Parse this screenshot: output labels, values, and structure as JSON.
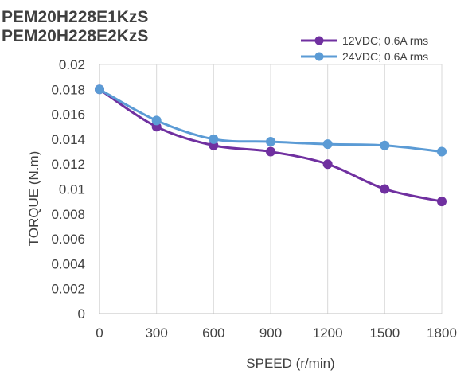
{
  "titles": [
    "PEM20H228E1KzS",
    "PEM20H228E2KzS"
  ],
  "chart_data": {
    "type": "line",
    "title": "",
    "xlabel": "SPEED (r/min)",
    "ylabel": "TORQUE (N.m)",
    "x": [
      0,
      300,
      600,
      900,
      1200,
      1500,
      1800
    ],
    "x_tick_labels": [
      "0",
      "300",
      "600",
      "900",
      "1200",
      "1500",
      "1800"
    ],
    "y_tick_labels": [
      "0",
      "0.002",
      "0.004",
      "0.006",
      "0.008",
      "0.01",
      "0.012",
      "0.014",
      "0.016",
      "0.018",
      "0.02"
    ],
    "ylim": [
      0,
      0.02
    ],
    "grid": "vertical",
    "legend": "top-right",
    "series": [
      {
        "name": "12VDC; 0.6A rms",
        "color": "#7030a0",
        "values": [
          0.018,
          0.015,
          0.0135,
          0.013,
          0.012,
          0.01,
          0.009
        ]
      },
      {
        "name": "24VDC; 0.6A rms",
        "color": "#5b9bd5",
        "values": [
          0.018,
          0.0155,
          0.014,
          0.0138,
          0.0136,
          0.0135,
          0.013
        ]
      }
    ]
  }
}
